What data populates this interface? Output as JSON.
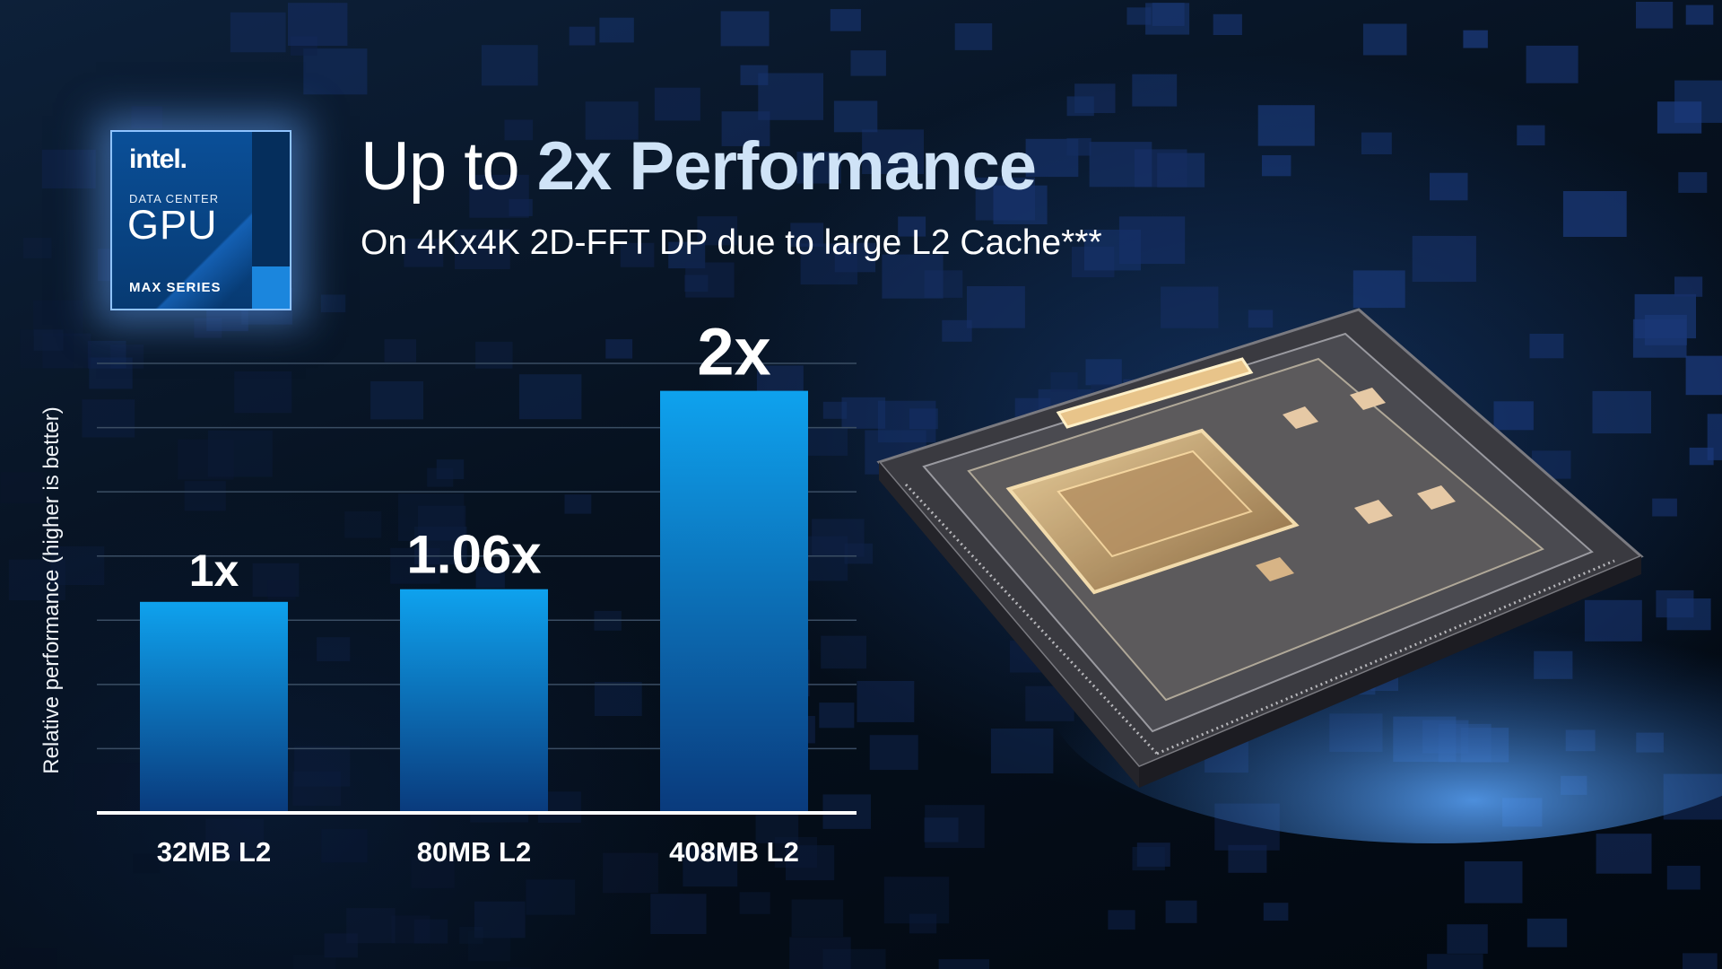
{
  "badge": {
    "logo": "intel.",
    "line1": "DATA CENTER",
    "line2": "GPU",
    "line3": "MAX SERIES"
  },
  "title": {
    "prefix": "Up to ",
    "highlight": "2x Performance"
  },
  "subtitle": "On 4Kx4K 2D-FFT DP due to large L2 Cache***",
  "colors": {
    "bar_top": "#0ea2ee",
    "bar_bottom": "#0a3a7c",
    "gridline": "#3a4d63",
    "axis": "#ffffff"
  },
  "chart_data": {
    "type": "bar",
    "categories": [
      "32MB L2",
      "80MB L2",
      "408MB L2"
    ],
    "values": [
      1,
      1.06,
      2
    ],
    "value_labels": [
      "1x",
      "1.06x",
      "2x"
    ],
    "title": "",
    "xlabel": "",
    "ylabel": "Relative performance (higher is better)",
    "ylim": [
      0,
      2.13
    ],
    "grid": true
  }
}
